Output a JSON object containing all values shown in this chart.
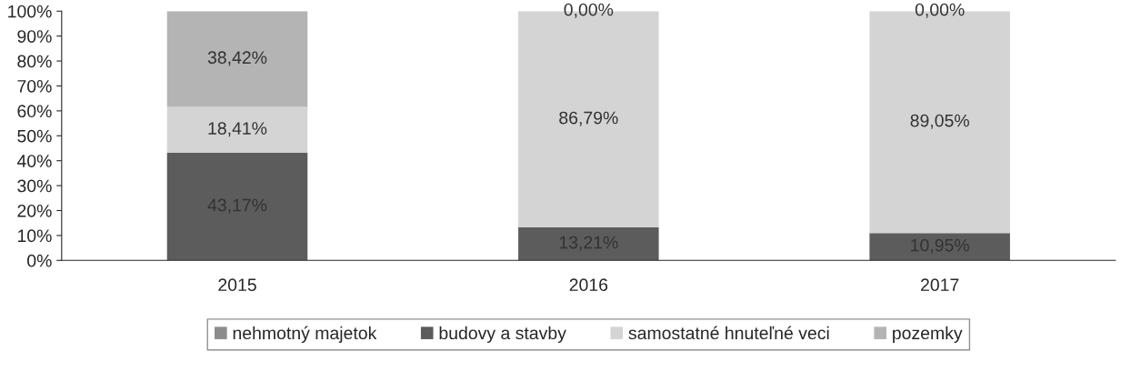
{
  "chart_data": {
    "type": "bar",
    "stacked": true,
    "categories": [
      "2015",
      "2016",
      "2017"
    ],
    "series": [
      {
        "name": "nehmotný majetok",
        "color": "#8c8c8c",
        "values": [
          null,
          null,
          null
        ],
        "value_labels": [
          null,
          null,
          null
        ]
      },
      {
        "name": "budovy a stavby",
        "color": "#5c5c5c",
        "values": [
          43.17,
          13.21,
          10.95
        ],
        "value_labels": [
          "43,17%",
          "13,21%",
          "10,95%"
        ]
      },
      {
        "name": "samostatné hnuteľné veci",
        "color": "#d4d4d4",
        "values": [
          18.41,
          86.79,
          89.05
        ],
        "value_labels": [
          "18,41%",
          "86,79%",
          "89,05%"
        ]
      },
      {
        "name": "pozemky",
        "color": "#b4b4b4",
        "values": [
          38.42,
          0,
          0
        ],
        "value_labels": [
          "38,42%",
          "0,00%",
          "0,00%"
        ]
      }
    ],
    "ylim": [
      0,
      100
    ],
    "yticks": [
      {
        "value": 0,
        "label": "0%"
      },
      {
        "value": 10,
        "label": "10%"
      },
      {
        "value": 20,
        "label": "20%"
      },
      {
        "value": 30,
        "label": "30%"
      },
      {
        "value": 40,
        "label": "40%"
      },
      {
        "value": 50,
        "label": "50%"
      },
      {
        "value": 60,
        "label": "60%"
      },
      {
        "value": 70,
        "label": "70%"
      },
      {
        "value": 80,
        "label": "80%"
      },
      {
        "value": 90,
        "label": "90%"
      },
      {
        "value": 100,
        "label": "100%"
      }
    ],
    "legend": "bottom",
    "grid": false
  }
}
